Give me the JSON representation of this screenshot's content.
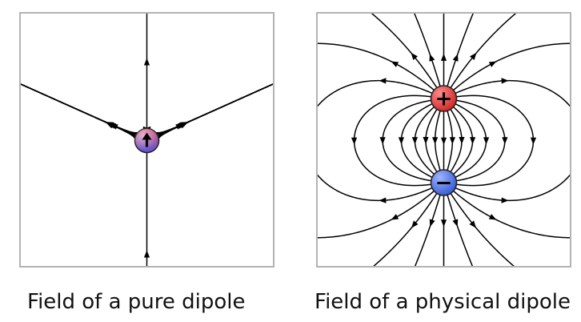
{
  "captions": {
    "left": "Field of a pure dipole",
    "right": "Field of a physical dipole"
  },
  "charges": {
    "positive_symbol": "+",
    "negative_symbol": "−",
    "positive_color": "#d42a2a",
    "negative_color": "#3a5fd6",
    "dipole_gradient_top": "#e0577a",
    "dipole_gradient_bottom": "#5a56d8"
  },
  "icons": {
    "dipole_moment": "up-arrow-icon"
  },
  "colors": {
    "field_lines": "#000000",
    "frame": "#b3b3b3"
  }
}
